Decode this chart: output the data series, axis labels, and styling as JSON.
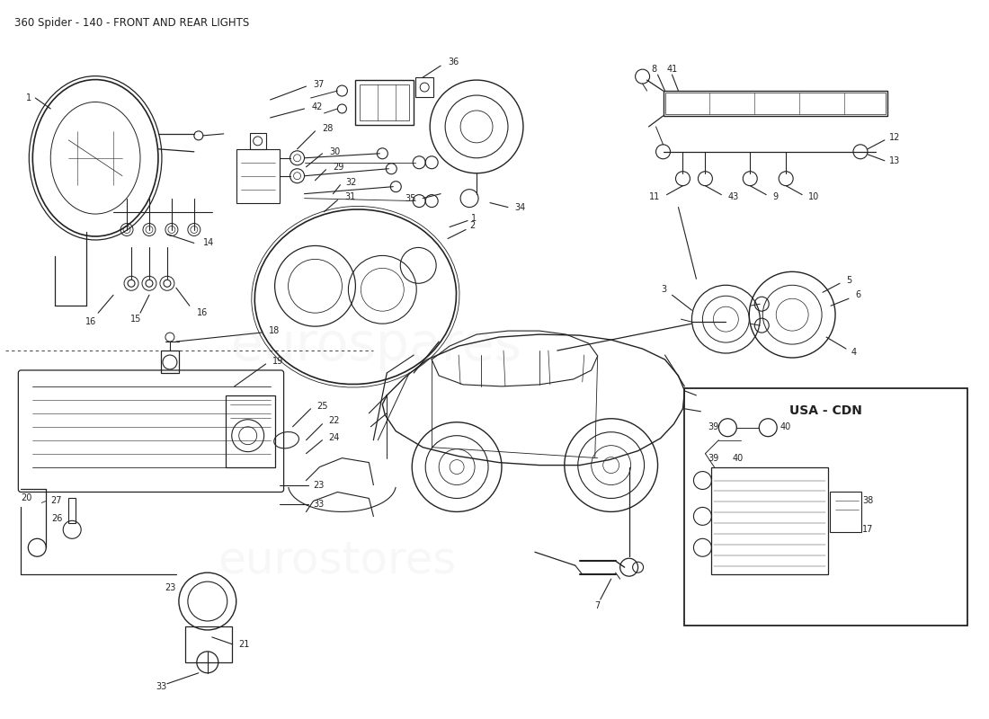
{
  "title": "360 Spider - 140 - FRONT AND REAR LIGHTS",
  "bg": "#ffffff",
  "lc": "#222222",
  "tc": "#222222",
  "fig_w": 11.0,
  "fig_h": 8.0,
  "title_fs": 8.5,
  "label_fs": 7.0
}
